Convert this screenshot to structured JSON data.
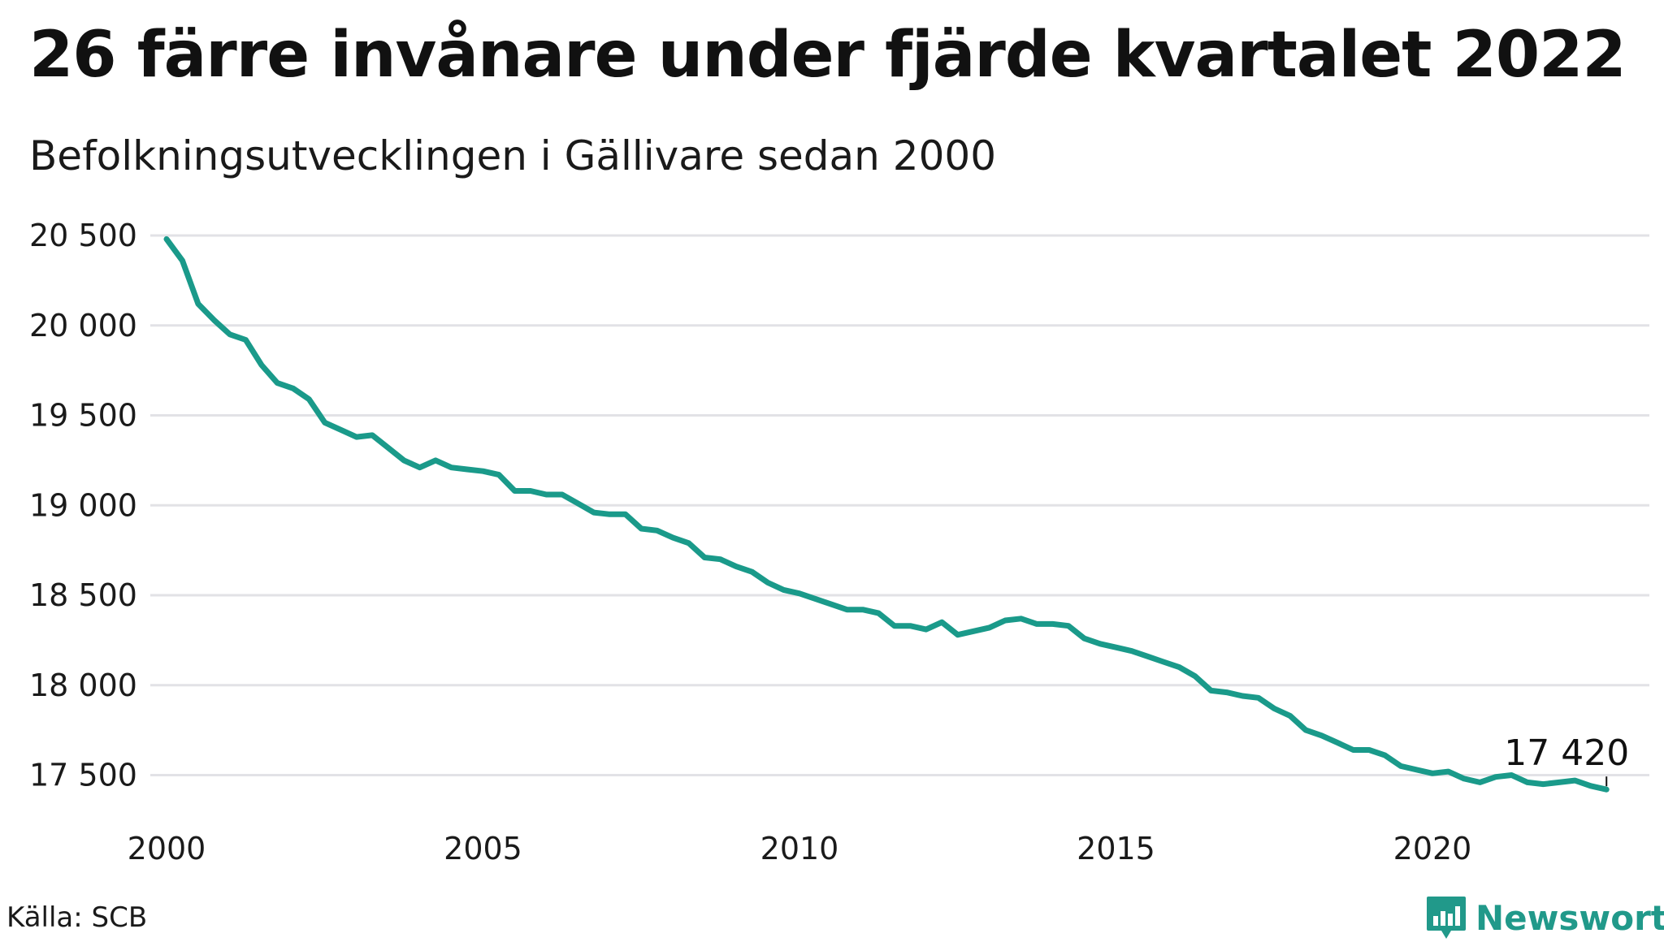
{
  "header": {
    "title": "26 färre invånare under fjärde kvartalet 2022",
    "subtitle": "Befolkningsutvecklingen i Gällivare sedan 2000"
  },
  "footer": {
    "source": "Källa: SCB",
    "brand": "Newsworthy",
    "brand_icon": "bar-chart-icon",
    "brand_color": "#21998a"
  },
  "colors": {
    "line": "#1a9a8a",
    "grid": "#e2e2e6",
    "text": "#1a1a1a"
  },
  "chart_data": {
    "type": "line",
    "title": "26 färre invånare under fjärde kvartalet 2022",
    "subtitle": "Befolkningsutvecklingen i Gällivare sedan 2000",
    "xlim": [
      2000,
      2023.2
    ],
    "ylim": [
      17400,
      20500
    ],
    "x_ticks": [
      2000,
      2005,
      2010,
      2015,
      2020
    ],
    "x_tick_labels": [
      "2000",
      "2005",
      "2010",
      "2015",
      "2020"
    ],
    "y_ticks": [
      17500,
      18000,
      18500,
      19000,
      19500,
      20000,
      20500
    ],
    "y_tick_labels": [
      "17 500",
      "18 000",
      "18 500",
      "19 000",
      "19 500",
      "20 000",
      "20 500"
    ],
    "grid": true,
    "end_label": "17 420",
    "series": [
      {
        "x": [
          2000.0,
          2000.25,
          2000.5,
          2000.75,
          2001.0,
          2001.25,
          2001.5,
          2001.75,
          2002.0,
          2002.25,
          2002.5,
          2002.75,
          2003.0,
          2003.25,
          2003.5,
          2003.75,
          2004.0,
          2004.25,
          2004.5,
          2004.75,
          2005.0,
          2005.25,
          2005.5,
          2005.75,
          2006.0,
          2006.25,
          2006.5,
          2006.75,
          2007.0,
          2007.25,
          2007.5,
          2007.75,
          2008.0,
          2008.25,
          2008.5,
          2008.75,
          2009.0,
          2009.25,
          2009.5,
          2009.75,
          2010.0,
          2010.25,
          2010.5,
          2010.75,
          2011.0,
          2011.25,
          2011.5,
          2011.75,
          2012.0,
          2012.25,
          2012.5,
          2012.75,
          2013.0,
          2013.25,
          2013.5,
          2013.75,
          2014.0,
          2014.25,
          2014.5,
          2014.75,
          2015.0,
          2015.25,
          2015.5,
          2015.75,
          2016.0,
          2016.25,
          2016.5,
          2016.75,
          2017.0,
          2017.25,
          2017.5,
          2017.75,
          2018.0,
          2018.25,
          2018.5,
          2018.75,
          2019.0,
          2019.25,
          2019.5,
          2019.75,
          2020.0,
          2020.25,
          2020.5,
          2020.75,
          2021.0,
          2021.25,
          2021.5,
          2021.75,
          2022.0,
          2022.25,
          2022.5,
          2022.75
        ],
        "y": [
          20480,
          20360,
          20120,
          20030,
          19950,
          19920,
          19780,
          19680,
          19650,
          19590,
          19460,
          19420,
          19380,
          19390,
          19320,
          19250,
          19210,
          19250,
          19210,
          19200,
          19190,
          19170,
          19080,
          19080,
          19060,
          19060,
          19010,
          18960,
          18950,
          18950,
          18870,
          18860,
          18820,
          18790,
          18710,
          18700,
          18660,
          18630,
          18570,
          18530,
          18510,
          18480,
          18450,
          18420,
          18420,
          18400,
          18330,
          18330,
          18310,
          18350,
          18280,
          18300,
          18320,
          18360,
          18370,
          18340,
          18340,
          18330,
          18260,
          18230,
          18210,
          18190,
          18160,
          18130,
          18100,
          18050,
          17970,
          17960,
          17940,
          17930,
          17870,
          17830,
          17750,
          17720,
          17680,
          17640,
          17640,
          17610,
          17550,
          17530,
          17510,
          17520,
          17480,
          17460,
          17490,
          17500,
          17460,
          17450,
          17460,
          17470,
          17440,
          17420
        ]
      }
    ]
  }
}
